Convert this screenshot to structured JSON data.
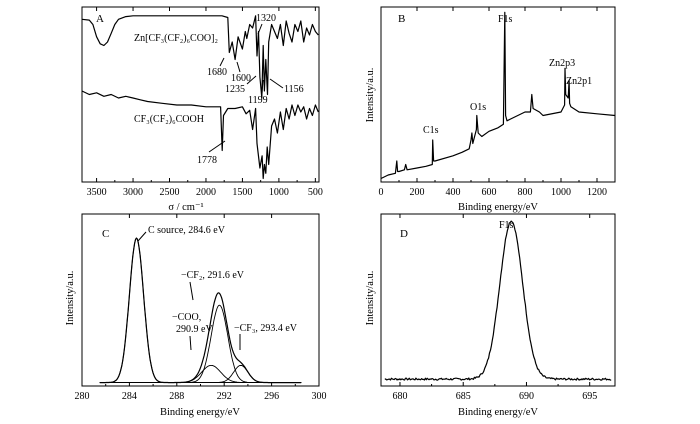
{
  "chart_data": [
    {
      "panel": "A",
      "type": "line",
      "xlabel": "σ / cm⁻¹",
      "xticks": [
        "3500",
        "3000",
        "2500",
        "2000",
        "1500",
        "1000",
        "500"
      ],
      "xlim": [
        3700,
        450
      ],
      "series": [
        {
          "name": "Zn[CF₃(CF₂)₆COO]₂",
          "x": [
            3700,
            3600,
            3550,
            3500,
            3450,
            3400,
            3350,
            3300,
            3250,
            3200,
            3100,
            3000,
            2800,
            2500,
            2200,
            2000,
            1900,
            1780,
            1700,
            1680,
            1640,
            1600,
            1560,
            1500,
            1460,
            1440,
            1400,
            1360,
            1320,
            1300,
            1280,
            1260,
            1235,
            1215,
            1199,
            1180,
            1156,
            1140,
            1100,
            1060,
            1020,
            980,
            940,
            900,
            860,
            820,
            780,
            740,
            700,
            660,
            620,
            580,
            540,
            500,
            460
          ],
          "y": [
            0.93,
            0.925,
            0.9,
            0.83,
            0.79,
            0.78,
            0.8,
            0.85,
            0.9,
            0.93,
            0.945,
            0.95,
            0.95,
            0.95,
            0.95,
            0.95,
            0.95,
            0.95,
            0.94,
            0.74,
            0.8,
            0.7,
            0.83,
            0.76,
            0.86,
            0.82,
            0.9,
            0.88,
            0.95,
            0.72,
            0.86,
            0.6,
            0.48,
            0.78,
            0.52,
            0.7,
            0.5,
            0.8,
            0.9,
            0.86,
            0.82,
            0.9,
            0.78,
            0.92,
            0.85,
            0.8,
            0.9,
            0.86,
            0.92,
            0.8,
            0.88,
            0.84,
            0.9,
            0.86,
            0.84
          ]
        },
        {
          "name": "CF₃(CF₂)₆COOH",
          "x": [
            3700,
            3600,
            3500,
            3400,
            3300,
            3200,
            3100,
            3000,
            2900,
            2800,
            2600,
            2400,
            2200,
            2000,
            1900,
            1800,
            1778,
            1760,
            1700,
            1600,
            1500,
            1450,
            1400,
            1360,
            1320,
            1300,
            1260,
            1230,
            1215,
            1199,
            1180,
            1160,
            1140,
            1100,
            1060,
            1020,
            980,
            940,
            900,
            860,
            820,
            780,
            740,
            700,
            660,
            620,
            580,
            540,
            500,
            460
          ],
          "y": [
            0.52,
            0.5,
            0.51,
            0.49,
            0.5,
            0.48,
            0.49,
            0.48,
            0.47,
            0.46,
            0.45,
            0.44,
            0.44,
            0.43,
            0.43,
            0.43,
            0.18,
            0.38,
            0.42,
            0.42,
            0.43,
            0.39,
            0.41,
            0.3,
            0.42,
            0.22,
            0.08,
            0.15,
            0.02,
            0.1,
            0.05,
            0.2,
            0.1,
            0.32,
            0.36,
            0.28,
            0.4,
            0.3,
            0.42,
            0.36,
            0.44,
            0.38,
            0.44,
            0.4,
            0.43,
            0.36,
            0.42,
            0.38,
            0.44,
            0.4
          ]
        }
      ],
      "annotations": [
        "1320",
        "1680",
        "1600",
        "1235",
        "1199",
        "1156",
        "1778"
      ]
    },
    {
      "panel": "B",
      "type": "line",
      "xlabel": "Binding energy/eV",
      "ylabel": "Intensity/a.u.",
      "xticks": [
        "0",
        "200",
        "400",
        "600",
        "800",
        "1000",
        "1200"
      ],
      "xlim": [
        0,
        1300
      ],
      "series": [
        {
          "name": "survey",
          "x": [
            0,
            40,
            80,
            88,
            92,
            100,
            130,
            137,
            145,
            200,
            250,
            285,
            287,
            292,
            300,
            400,
            450,
            490,
            500,
            505,
            510,
            520,
            530,
            532,
            540,
            560,
            600,
            650,
            680,
            688,
            692,
            700,
            720,
            760,
            800,
            830,
            838,
            845,
            880,
            900,
            1000,
            1020,
            1022,
            1026,
            1040,
            1045,
            1048,
            1055,
            1100,
            1200,
            1300
          ],
          "y": [
            0.02,
            0.04,
            0.05,
            0.12,
            0.06,
            0.06,
            0.07,
            0.1,
            0.07,
            0.08,
            0.09,
            0.1,
            0.24,
            0.12,
            0.12,
            0.15,
            0.17,
            0.19,
            0.24,
            0.28,
            0.22,
            0.26,
            0.3,
            0.38,
            0.28,
            0.26,
            0.29,
            0.31,
            0.33,
            0.97,
            0.38,
            0.35,
            0.36,
            0.38,
            0.4,
            0.4,
            0.5,
            0.42,
            0.4,
            0.38,
            0.4,
            0.44,
            0.65,
            0.5,
            0.48,
            0.58,
            0.45,
            0.43,
            0.4,
            0.39,
            0.38
          ]
        }
      ],
      "annotations": [
        "F1s",
        "O1s",
        "C1s",
        "Zn2p3",
        "Zn2p1"
      ]
    },
    {
      "panel": "C",
      "type": "line",
      "xlabel": "Binding energy/eV",
      "ylabel": "Intensity/a.u.",
      "xticks": [
        "280",
        "284",
        "288",
        "292",
        "296",
        "300"
      ],
      "xlim": [
        280,
        300
      ],
      "peaks": [
        {
          "label": "C source, 284.6 eV",
          "center": 284.6,
          "height": 0.84,
          "sigma": 0.6
        },
        {
          "label": "−COO, 290.9 eV",
          "center": 290.9,
          "height": 0.1,
          "sigma": 0.8
        },
        {
          "label": "−CF₂, 291.6 eV",
          "center": 291.6,
          "height": 0.45,
          "sigma": 0.7
        },
        {
          "label": "−CF₃, 293.4 eV",
          "center": 293.4,
          "height": 0.1,
          "sigma": 0.6
        }
      ],
      "baseline": 0.02
    },
    {
      "panel": "D",
      "type": "line",
      "xlabel": "Binding energy/eV",
      "ylabel": "Intensity/a.u.",
      "xticks": [
        "680",
        "685",
        "690",
        "695"
      ],
      "xlim": [
        678.5,
        697
      ],
      "peak": {
        "label": "F1s",
        "center": 688.8,
        "height": 0.92,
        "sigma": 0.9
      },
      "baseline": 0.04
    }
  ],
  "labels": {
    "panelA": "A",
    "panelB": "B",
    "panelC": "C",
    "panelD": "D",
    "a_zn": "Zn[CF₃(CF₂)₆COO]₂",
    "a_acid": "CF₃(CF₂)₆COOH",
    "a_xlabel": "σ / cm⁻¹",
    "a_1320": "1320",
    "a_1680": "1680",
    "a_1600": "1600",
    "a_1235": "1235",
    "a_1199": "1199",
    "a_1156": "1156",
    "a_1778": "1778",
    "b_ylabel": "Intensity/a.u.",
    "b_xlabel": "Binding energy/eV",
    "b_f1s": "F1s",
    "b_o1s": "O1s",
    "b_c1s": "C1s",
    "b_zn2p3": "Zn2p3",
    "b_zn2p1": "Zn2p1",
    "c_ylabel": "Intensity/a.u.",
    "c_xlabel": "Binding energy/eV",
    "c_csource": "C source, 284.6 eV",
    "c_cf2": "−CF₂, 291.6 eV",
    "c_coo1": "−COO,",
    "c_coo2": "290.9 eV",
    "c_cf3": "−CF₃, 293.4 eV",
    "d_ylabel": "Intensity/a.u.",
    "d_xlabel": "Binding energy/eV",
    "d_f1s": "F1s"
  }
}
